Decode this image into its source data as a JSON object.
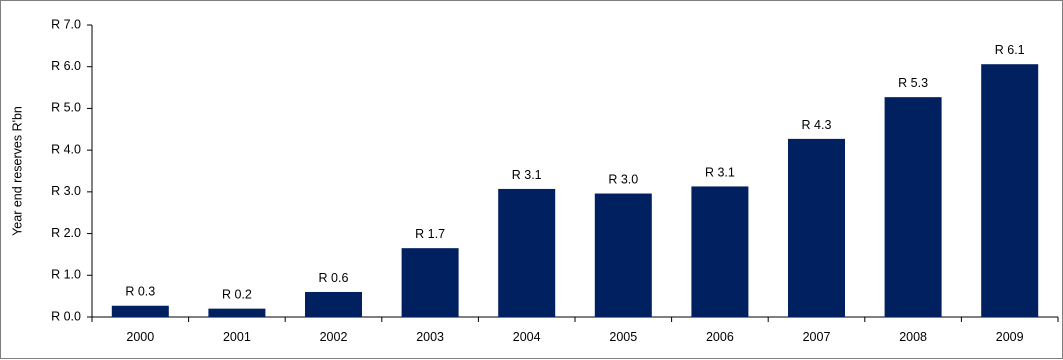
{
  "chart_data": {
    "type": "bar",
    "categories": [
      "2000",
      "2001",
      "2002",
      "2003",
      "2004",
      "2005",
      "2006",
      "2007",
      "2008",
      "2009"
    ],
    "values": [
      0.27,
      0.2,
      0.6,
      1.65,
      3.07,
      2.96,
      3.13,
      4.27,
      5.27,
      6.06
    ],
    "data_labels": [
      "R 0.3",
      "R 0.2",
      "R 0.6",
      "R 1.7",
      "R 3.1",
      "R 3.0",
      "R 3.1",
      "R 4.3",
      "R 5.3",
      "R 6.1"
    ],
    "title": "",
    "xlabel": "",
    "ylabel": "Year end reserves R'bn",
    "ylim": [
      0,
      7
    ],
    "y_ticks": [
      0,
      1,
      2,
      3,
      4,
      5,
      6,
      7
    ],
    "y_tick_labels": [
      "R 0.0",
      "R 1.0",
      "R 2.0",
      "R 3.0",
      "R 4.0",
      "R 5.0",
      "R 6.0",
      "R 7.0"
    ],
    "bar_color": "#002060",
    "grid": false,
    "legend": "none"
  }
}
